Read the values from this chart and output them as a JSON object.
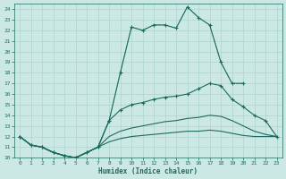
{
  "xlabel": "Humidex (Indice chaleur)",
  "background_color": "#cce8e4",
  "grid_color": "#aad4cc",
  "line_color": "#1a6b5e",
  "xlim": [
    -0.5,
    23.5
  ],
  "ylim": [
    10,
    24.5
  ],
  "yticks": [
    10,
    11,
    12,
    13,
    14,
    15,
    16,
    17,
    18,
    19,
    20,
    21,
    22,
    23,
    24
  ],
  "xticks": [
    0,
    1,
    2,
    3,
    4,
    5,
    6,
    7,
    8,
    9,
    10,
    11,
    12,
    13,
    14,
    15,
    16,
    17,
    18,
    19,
    20,
    21,
    22,
    23
  ],
  "line1_x": [
    0,
    1,
    2,
    3,
    4,
    5,
    6,
    7,
    8,
    9,
    10,
    11,
    12,
    13,
    14,
    15,
    16,
    17,
    18,
    19,
    20
  ],
  "line1_y": [
    12.0,
    11.2,
    11.0,
    10.5,
    10.2,
    10.0,
    10.5,
    11.0,
    13.5,
    18.0,
    22.3,
    22.0,
    22.5,
    22.5,
    22.2,
    24.2,
    23.2,
    22.5,
    19.0,
    17.0,
    17.0
  ],
  "line2_x": [
    0,
    1,
    2,
    3,
    4,
    5,
    6,
    7,
    8,
    9,
    10,
    11,
    12,
    13,
    14,
    15,
    16,
    17,
    18,
    19,
    20,
    21,
    22,
    23
  ],
  "line2_y": [
    12.0,
    11.2,
    11.0,
    10.5,
    10.2,
    10.0,
    10.5,
    11.0,
    13.5,
    14.5,
    15.0,
    15.2,
    15.5,
    15.7,
    15.8,
    16.0,
    16.5,
    17.0,
    16.8,
    15.5,
    14.8,
    14.0,
    13.5,
    12.0
  ],
  "line3_x": [
    0,
    1,
    2,
    3,
    4,
    5,
    6,
    7,
    8,
    9,
    10,
    11,
    12,
    13,
    14,
    15,
    16,
    17,
    18,
    19,
    20,
    21,
    22,
    23
  ],
  "line3_y": [
    12.0,
    11.2,
    11.0,
    10.5,
    10.2,
    10.0,
    10.5,
    11.0,
    12.0,
    12.5,
    12.8,
    13.0,
    13.2,
    13.4,
    13.5,
    13.7,
    13.8,
    14.0,
    13.9,
    13.5,
    13.0,
    12.5,
    12.2,
    12.0
  ],
  "line4_x": [
    0,
    1,
    2,
    3,
    4,
    5,
    6,
    7,
    8,
    9,
    10,
    11,
    12,
    13,
    14,
    15,
    16,
    17,
    18,
    19,
    20,
    21,
    22,
    23
  ],
  "line4_y": [
    12.0,
    11.2,
    11.0,
    10.5,
    10.2,
    10.0,
    10.5,
    11.0,
    11.5,
    11.8,
    12.0,
    12.1,
    12.2,
    12.3,
    12.4,
    12.5,
    12.5,
    12.6,
    12.5,
    12.3,
    12.1,
    12.0,
    12.0,
    12.0
  ]
}
